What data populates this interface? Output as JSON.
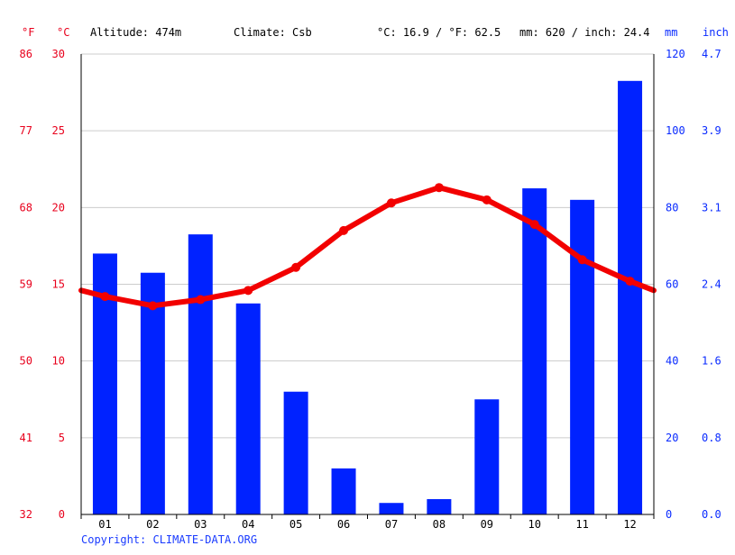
{
  "header": {
    "altitude": "Altitude: 474m",
    "climate": "Climate: Csb",
    "temp_avg": "°C: 16.9 / °F: 62.5",
    "precip_total": "mm: 620 / inch: 24.4"
  },
  "axis_units": {
    "fahrenheit": "°F",
    "celsius": "°C",
    "mm": "mm",
    "inch": "inch"
  },
  "footer": {
    "copyright": "Copyright: CLIMATE-DATA.ORG"
  },
  "colors": {
    "temperature": "#f20000",
    "precipitation": "#0022ff",
    "grid": "#cccccc"
  },
  "chart_data": {
    "type": "bar",
    "categories": [
      "01",
      "02",
      "03",
      "04",
      "05",
      "06",
      "07",
      "08",
      "09",
      "10",
      "11",
      "12"
    ],
    "series": [
      {
        "type": "bar",
        "axis": "right",
        "values": [
          68,
          63,
          73,
          55,
          32,
          12,
          3,
          4,
          30,
          85,
          82,
          113
        ]
      },
      {
        "type": "line",
        "axis": "left",
        "values": [
          14.2,
          13.6,
          14.0,
          14.6,
          16.1,
          18.5,
          20.3,
          21.3,
          20.5,
          18.9,
          16.6,
          15.2
        ],
        "edge_values": [
          14.6,
          14.6
        ]
      }
    ],
    "axes": {
      "left_celsius": {
        "ylim": [
          0,
          30
        ],
        "ticks": [
          "0",
          "5",
          "10",
          "15",
          "20",
          "25",
          "30"
        ]
      },
      "left_fahrenheit": {
        "ticks": [
          "32",
          "41",
          "50",
          "59",
          "68",
          "77",
          "86"
        ]
      },
      "right_mm": {
        "ylim": [
          0,
          120
        ],
        "ticks": [
          "0",
          "20",
          "40",
          "60",
          "80",
          "100",
          "120"
        ]
      },
      "right_inch": {
        "ticks": [
          "0.0",
          "0.8",
          "1.6",
          "2.4",
          "3.1",
          "3.9",
          "4.7"
        ]
      }
    },
    "grid": true
  }
}
